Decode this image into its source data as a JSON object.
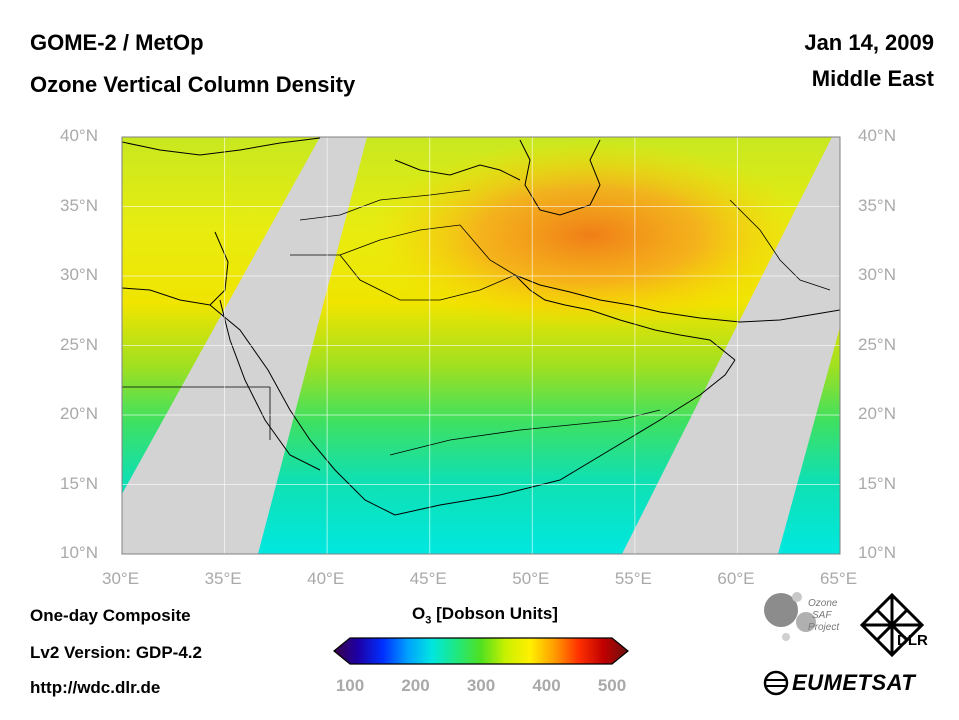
{
  "header": {
    "title_line1": "GOME-2 / MetOp",
    "title_line2": "Ozone Vertical Column Density",
    "date": "Jan 14, 2009",
    "region": "Middle East"
  },
  "footer": {
    "composite": "One-day Composite",
    "version": "Lv2 Version: GDP-4.2",
    "url": "http://wdc.dlr.de"
  },
  "colorbar": {
    "title_prefix": "O",
    "title_sub": "3",
    "title_suffix": " [Dobson Units]",
    "ticks": [
      "100",
      "200",
      "300",
      "400",
      "500"
    ],
    "min": 100,
    "max": 500,
    "colors": [
      "#3a0048",
      "#1c00a8",
      "#0030ff",
      "#00a0ff",
      "#00e6e0",
      "#20e880",
      "#50e020",
      "#c8f000",
      "#fff000",
      "#ff9c00",
      "#ff3000",
      "#c00000",
      "#6a1010"
    ]
  },
  "map": {
    "lat_labels": [
      "40°N",
      "35°N",
      "30°N",
      "25°N",
      "20°N",
      "15°N",
      "10°N"
    ],
    "lon_labels": [
      "30°E",
      "35°E",
      "40°E",
      "45°E",
      "50°E",
      "55°E",
      "60°E",
      "65°E"
    ],
    "lat_range": [
      10,
      40
    ],
    "lon_range": [
      30,
      65
    ],
    "no_data_color": "#d3d3d3"
  },
  "logos": {
    "saf_line1": "Ozone",
    "saf_line2": "SAF",
    "saf_line3": "Project",
    "dlr": "DLR",
    "eumetsat": "EUMETSAT"
  }
}
